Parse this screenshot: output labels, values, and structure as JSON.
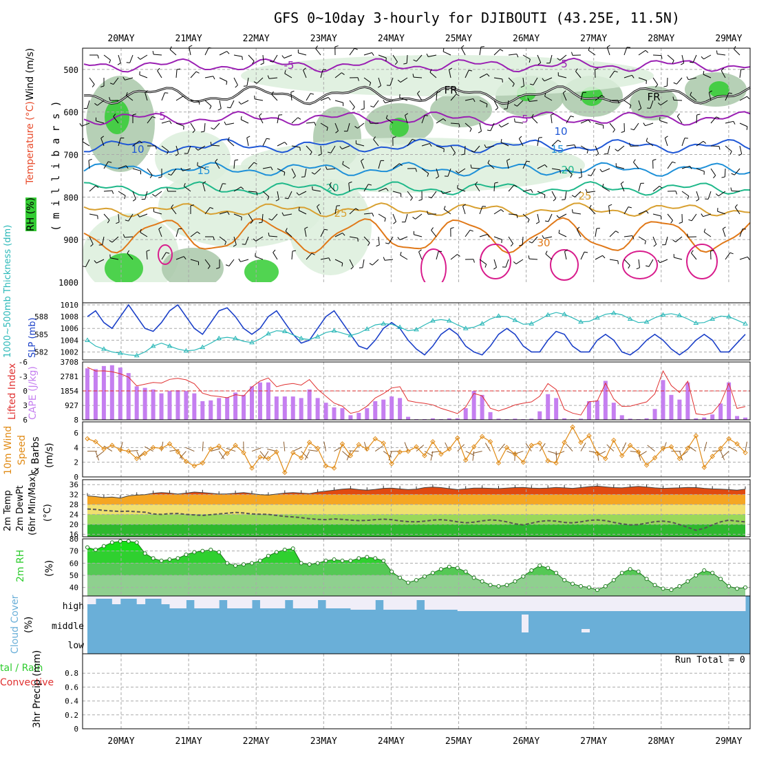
{
  "header": {
    "title": "GFS 0~10day 3-hourly for DJIBOUTI (43.25E, 11.5N)"
  },
  "colors": {
    "rh_green": "#33cc33",
    "rh_light": "#dceedc",
    "rh_mid": "#a9c8a9",
    "temp_purple": "#9a1fb3",
    "temp_blue": "#1f57d6",
    "temp_lightblue": "#1e90d8",
    "temp_teal": "#1fb88a",
    "temp_orange": "#d8a030",
    "temp_darkorange": "#e07818",
    "temp_magenta": "#d81c8c",
    "slp_blue": "#1a3fc8",
    "thick_cyan": "#2ab8b8",
    "cape_purple": "#c57ff0",
    "li_red": "#e03030",
    "wind_orange": "#e08a14",
    "cloud_blue": "#6aafd8",
    "cloud_white": "#f0eef8",
    "rh2m_green": "#2ecc2e"
  },
  "chart_data": [
    {
      "id": "upper-air",
      "type": "contour",
      "title": "Wind (m/s), Temperature (°C), RH (%)",
      "ylabel": "millibars",
      "y_ticks": [
        500,
        600,
        700,
        800,
        900,
        1000
      ],
      "ylim": [
        450,
        1000
      ],
      "x_ticks": [
        "20MAY",
        "21MAY",
        "22MAY",
        "23MAY",
        "24MAY",
        "25MAY",
        "26MAY",
        "27MAY",
        "28MAY",
        "29MAY"
      ],
      "freezing_label": "FR",
      "isotherms": [
        {
          "label": "-5",
          "mb": 490,
          "labels": [
            "-5",
            "5"
          ],
          "color_key": "temp_purple"
        },
        {
          "label": "FR",
          "mb": 560,
          "labels": [
            "FR",
            "FR"
          ],
          "color_key": "black"
        },
        {
          "label": "5",
          "mb": 615,
          "labels": [
            "5",
            "5"
          ],
          "color_key": "temp_purple"
        },
        {
          "label": "10",
          "mb": 680,
          "labels": [
            "10",
            "10"
          ],
          "color_key": "temp_blue"
        },
        {
          "label": "15",
          "mb": 735,
          "labels": [
            "15",
            "15"
          ],
          "color_key": "temp_lightblue"
        },
        {
          "label": "20",
          "mb": 780,
          "labels": [
            "20",
            "20"
          ],
          "color_key": "temp_teal"
        },
        {
          "label": "25",
          "mb": 830,
          "labels": [
            "25",
            "25"
          ],
          "color_key": "temp_orange"
        },
        {
          "label": "30",
          "mb": 890,
          "labels": [
            "30"
          ],
          "color_key": "temp_darkorange"
        }
      ],
      "contour_labels": [
        "-5",
        "5",
        "FR",
        "FR",
        "5",
        "5",
        "10",
        "10",
        "15",
        "15",
        "20",
        "20",
        "25",
        "25",
        "30"
      ]
    },
    {
      "id": "slp-thickness",
      "type": "line",
      "ylabel_left": "1000-500mb Thickness (dm)",
      "ylabel_right": "SLP (mb)",
      "thickness_ticks": [
        582,
        585,
        588
      ],
      "slp_ticks": [
        1002,
        1004,
        1006,
        1008,
        1010
      ],
      "slp_range": [
        1001,
        1010
      ],
      "thickness_range": [
        581,
        590
      ],
      "slp": [
        1008,
        1009,
        1007,
        1006,
        1008,
        1010,
        1008,
        1006,
        1005.5,
        1007,
        1009,
        1010,
        1008,
        1006,
        1005,
        1007,
        1009,
        1009.5,
        1008,
        1006,
        1005,
        1006,
        1008,
        1009,
        1007,
        1005,
        1003.5,
        1004,
        1006,
        1008,
        1009,
        1007,
        1005,
        1003,
        1002.5,
        1004,
        1006,
        1007,
        1006,
        1004,
        1002.5,
        1001.5,
        1003,
        1005,
        1006,
        1005,
        1003,
        1002,
        1001.5,
        1003,
        1005,
        1006,
        1005,
        1003,
        1002,
        1002,
        1004,
        1005.5,
        1005,
        1003,
        1002,
        1002,
        1004,
        1005,
        1004,
        1002,
        1001.5,
        1002.5,
        1004,
        1005,
        1004,
        1002.5,
        1001.5,
        1002.5,
        1004,
        1005,
        1004,
        1002,
        1002,
        1003.5,
        1005
      ],
      "thickness": [
        584,
        583,
        582.5,
        582,
        581.8,
        581.5,
        581.4,
        582,
        583,
        583.5,
        583,
        582.5,
        582.2,
        582.3,
        582.8,
        583.5,
        584.3,
        584.5,
        584.3,
        583.8,
        583.6,
        584.2,
        585.1,
        585.6,
        585.5,
        584.9,
        584.3,
        584.1,
        584.6,
        585.3,
        585.6,
        585.2,
        584.8,
        585.2,
        585.9,
        586.6,
        586.8,
        586.7,
        586.2,
        585.6,
        585.8,
        586.6,
        587.3,
        587.5,
        587.3,
        586.6,
        586.0,
        586.2,
        586.8,
        587.6,
        588.1,
        588.0,
        587.4,
        586.7,
        586.8,
        587.5,
        588.3,
        588.7,
        588.4,
        587.8,
        587.1,
        587.2,
        587.8,
        588.4,
        588.6,
        588.3,
        587.6,
        587.0,
        587.1,
        587.8,
        588.3,
        588.5,
        588.2,
        587.6,
        586.9,
        587.0,
        587.6,
        588.1,
        588.0,
        587.4,
        586.8
      ]
    },
    {
      "id": "cape-li",
      "type": "bar",
      "ylabel_left": "Lifted Index",
      "ylabel_right": "CAPE (J/kg)",
      "li_ticks": [
        -6,
        -3,
        0,
        3,
        6
      ],
      "cape_ticks": [
        8,
        927,
        1854,
        2781,
        3708
      ],
      "li_range": [
        -6,
        6
      ],
      "cape_range": [
        8,
        3708
      ],
      "cape": [
        3300,
        3250,
        3450,
        3500,
        3350,
        3000,
        2150,
        2050,
        1950,
        1700,
        1850,
        1900,
        1850,
        1700,
        1200,
        1250,
        1400,
        1450,
        1750,
        1600,
        2150,
        2400,
        2400,
        1500,
        1500,
        1500,
        1400,
        1950,
        1400,
        1100,
        800,
        750,
        300,
        450,
        750,
        1200,
        1300,
        1500,
        1400,
        200,
        50,
        50,
        100,
        50,
        100,
        100,
        750,
        1850,
        1600,
        500,
        80,
        50,
        80,
        50,
        80,
        550,
        1650,
        1400,
        100,
        50,
        80,
        1200,
        1250,
        2500,
        1100,
        300,
        80,
        50,
        100,
        700,
        2550,
        1600,
        1300,
        2400,
        100,
        150,
        350,
        1050,
        2400,
        250,
        150
      ]
    },
    {
      "id": "wind10m",
      "type": "line",
      "ylabel": "10m Wind Speed & Barbs (m/s)",
      "ticks": [
        0,
        2,
        4,
        6
      ],
      "range": [
        0,
        7.5
      ],
      "speed": [
        5.2,
        4.8,
        3.8,
        4.3,
        3.7,
        3.5,
        2.5,
        3.2,
        4.0,
        3.9,
        4.5,
        3.4,
        2.1,
        1.5,
        1.9,
        3.8,
        4.2,
        3.2,
        4.3,
        3.3,
        1.2,
        2.7,
        2.5,
        3.4,
        0.6,
        3.3,
        2.6,
        4.7,
        3.9,
        1.5,
        1.2,
        4.5,
        2.9,
        4.4,
        3.8,
        5.2,
        4.6,
        1.8,
        3.4,
        3.5,
        4.1,
        2.9,
        4.8,
        3.1,
        3.8,
        5.3,
        2.3,
        4.1,
        5.5,
        4.8,
        1.9,
        4.0,
        3.1,
        2.0,
        4.3,
        4.6,
        2.2,
        1.9,
        4.7,
        6.8,
        4.7,
        5.6,
        3.2,
        2.5,
        5.0,
        2.9,
        4.3,
        3.4,
        1.6,
        2.6,
        3.9,
        4.1,
        2.5,
        3.9,
        5.6,
        1.3,
        2.8,
        3.9,
        5.2,
        4.5,
        3.3
      ]
    },
    {
      "id": "temp2m",
      "type": "area",
      "ylabel": "2m Temp 2m DewPt (6hr Min/Max) (°C)",
      "ticks": [
        16,
        20,
        24,
        28,
        32,
        36
      ],
      "range": [
        15,
        38
      ],
      "temp": [
        31.5,
        31.2,
        30.8,
        31.0,
        30.6,
        31.5,
        31.8,
        32.0,
        32.5,
        32.8,
        32.6,
        32.2,
        32.6,
        33.0,
        32.8,
        32.5,
        32.2,
        32.3,
        32.5,
        32.8,
        32.4,
        32.0,
        31.8,
        32.2,
        32.6,
        32.8,
        32.6,
        32.4,
        33.0,
        33.4,
        33.8,
        34.2,
        34.4,
        34.0,
        33.8,
        34.1,
        34.5,
        34.6,
        34.3,
        34.0,
        34.2,
        34.8,
        35.0,
        34.8,
        34.4,
        34.0,
        34.3,
        34.6,
        34.6,
        34.5,
        34.4,
        34.6,
        34.8,
        34.9,
        34.6,
        34.5,
        34.6,
        34.9,
        34.7,
        34.5,
        34.8,
        35.2,
        35.4,
        35.1,
        34.8,
        34.7,
        35.0,
        35.3,
        35.0,
        34.7,
        34.5,
        34.6,
        34.7,
        34.9,
        34.8,
        34.5,
        34.3,
        34.2,
        34.0,
        33.8,
        34.2
      ],
      "dewpoint": [
        26.2,
        26.0,
        25.6,
        25.4,
        25.2,
        25.3,
        25.1,
        24.9,
        24.2,
        24.0,
        24.3,
        24.4,
        24.0,
        23.8,
        23.6,
        23.9,
        24.2,
        24.5,
        24.8,
        24.6,
        24.2,
        24.1,
        24.0,
        23.6,
        23.2,
        23.0,
        22.7,
        22.3,
        22.0,
        21.9,
        22.2,
        22.0,
        21.7,
        21.5,
        21.6,
        21.9,
        22.1,
        21.9,
        21.4,
        21.1,
        21.0,
        21.3,
        21.7,
        21.9,
        21.6,
        21.0,
        20.6,
        20.9,
        21.4,
        21.8,
        21.6,
        21.0,
        20.2,
        19.8,
        20.5,
        21.2,
        21.5,
        21.3,
        20.8,
        20.6,
        21.0,
        21.6,
        21.8,
        21.5,
        20.8,
        20.2,
        19.8,
        19.9,
        20.5,
        21.1,
        21.3,
        20.9,
        19.9,
        18.8,
        17.6,
        18.4,
        19.8,
        21.0,
        21.7,
        21.3,
        21.0
      ]
    },
    {
      "id": "rh2m",
      "type": "area",
      "ylabel": "2m RH (%)",
      "ticks": [
        40,
        50,
        60,
        70,
        80
      ],
      "range": [
        33,
        80
      ],
      "rh": [
        73,
        71,
        74,
        77,
        78,
        78,
        77,
        68,
        64,
        62,
        63,
        64,
        67,
        69,
        70,
        71,
        69,
        60,
        58,
        59,
        60,
        62,
        66,
        69,
        71,
        72,
        60,
        59,
        60,
        62,
        63,
        62,
        62,
        64,
        65,
        64,
        62,
        53,
        48,
        44,
        46,
        49,
        52,
        55,
        57,
        56,
        53,
        48,
        45,
        42,
        41,
        42,
        45,
        49,
        54,
        58,
        56,
        52,
        46,
        43,
        41,
        40,
        38,
        41,
        46,
        52,
        55,
        53,
        47,
        42,
        39,
        38,
        41,
        45,
        50,
        54,
        52,
        47,
        41,
        39,
        40
      ]
    },
    {
      "id": "cloud-cover",
      "type": "area",
      "ylabel": "Cloud Cover (%)",
      "tick_labels": [
        "high",
        "middle",
        "low"
      ]
    },
    {
      "id": "precip",
      "type": "bar",
      "ylabel_left": "Total / Rain",
      "ylabel_left2": "Convective",
      "ylabel": "3hr Precip (mm)",
      "ticks": [
        0,
        0.2,
        0.4,
        0.6,
        0.8
      ],
      "range": [
        0,
        1
      ],
      "run_total_label": "Run Total = 0",
      "x_ticks": [
        "20MAY",
        "21MAY",
        "22MAY",
        "23MAY",
        "24MAY",
        "25MAY",
        "26MAY",
        "27MAY",
        "28MAY",
        "29MAY"
      ],
      "values": []
    }
  ],
  "labels": {
    "wind_ms": "Wind (m/s)",
    "temp_c": "Temperature (°C)",
    "rh_pct": "RH (%)",
    "millibars": "( m i l l i b a r s )",
    "thickness": "1000~500mb Thickness (dm)",
    "slp": "SLP (mb)",
    "lifted_index": "Lifted Index",
    "cape": "CAPE (J/kg)",
    "wind10m": "10m Wind",
    "wind10m_b": "Speed",
    "wind10m_c": "& Barbs",
    "ms": "(m/s)",
    "temp2m_a": "2m Temp",
    "temp2m_b": "2m DewPt",
    "temp2m_c": "(6hr Min/Max)",
    "degc": "(°C)",
    "rh2m": "2m RH",
    "pct": "(%)",
    "cloud": "Cloud Cover",
    "cloud_pct": "(%)",
    "precip_a": "tal / Rain",
    "precip_b": "Convective",
    "precip_c": "3hr Precip (mm)"
  }
}
